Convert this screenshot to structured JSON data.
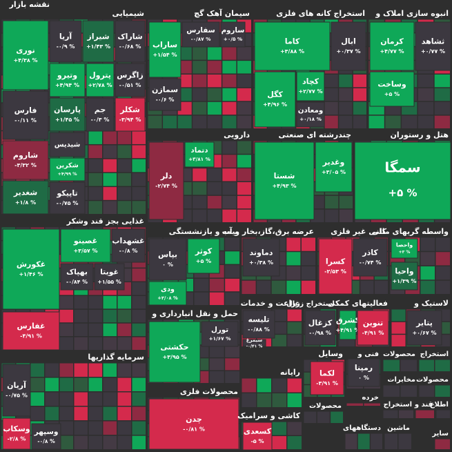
{
  "chart_data": {
    "type": "treemap",
    "title": "نقشه بازار",
    "sectors": [
      {
        "name": "شیمیایی",
        "stocks": [
          {
            "name": "نوری",
            "value": 4.38,
            "value_label": "+۴/۳۸ %",
            "color": "#0fa858"
          },
          {
            "name": "آریا",
            "value": -0.9,
            "value_label": "-۰/۹ %",
            "color": "#3c3840"
          },
          {
            "name": "شیراز",
            "value": 1.43,
            "value_label": "+۱/۴۳ %",
            "color": "#1f6b45"
          },
          {
            "name": "شاراک",
            "value": -0.68,
            "value_label": "-۰/۶۸ %",
            "color": "#3c3840"
          },
          {
            "name": "وتیرو",
            "value": 4.94,
            "value_label": "+۴/۹۴ %",
            "color": "#0fa858"
          },
          {
            "name": "پترول",
            "value": 2.78,
            "value_label": "+۲/۷۸ %",
            "color": "#0fa858"
          },
          {
            "name": "زاگرس",
            "value": -0.51,
            "value_label": "-۰/۵۱ %",
            "color": "#3c3840"
          },
          {
            "name": "فارس",
            "value": -0.11,
            "value_label": "-۰/۱۱ %",
            "color": "#3c3840"
          },
          {
            "name": "پارسان",
            "value": 1.45,
            "value_label": "+۱/۴۵ %",
            "color": "#1f6b45"
          },
          {
            "name": "جم",
            "value": -0.3,
            "value_label": "-۰/۳ %",
            "color": "#3c3840"
          },
          {
            "name": "شکلر",
            "value": -3.94,
            "value_label": "-۳/۹۴ %",
            "color": "#d42a4c"
          },
          {
            "name": "شیدیس",
            "color": "#3c3840"
          },
          {
            "name": "شاروم",
            "value": -3.32,
            "value_label": "-۳/۳۲ %",
            "color": "#8e2a42"
          },
          {
            "name": "شکرین",
            "value": 4.99,
            "value_label": "+۴/۹۹ %",
            "color": "#0fa858"
          },
          {
            "name": "شغدیر",
            "value": 1.8,
            "value_label": "+۱/۸ %",
            "color": "#1f6b45"
          },
          {
            "name": "تاپیکو",
            "value": -0.75,
            "value_label": "-۰/۷۵ %",
            "color": "#3c3840"
          }
        ]
      },
      {
        "name": "سیمان آهک گچ",
        "stocks": [
          {
            "name": "ساراب",
            "value": 1.54,
            "value_label": "+۱/۵۴ %",
            "color": "#0fa858"
          },
          {
            "name": "سفارس",
            "value": -0.87,
            "value_label": "-۰/۸۷ %",
            "color": "#3c3840"
          },
          {
            "name": "ساروم",
            "value": 0.5,
            "value_label": "+۰/۵ %",
            "color": "#3c3840"
          },
          {
            "name": "سمازن",
            "value": -0.6,
            "value_label": "-۰/۶ %",
            "color": "#3c3840"
          }
        ]
      },
      {
        "name": "استخراج کانه های فلزی",
        "stocks": [
          {
            "name": "کاما",
            "value": 3.88,
            "value_label": "+۳/۸۸ %",
            "color": "#0fa858"
          },
          {
            "name": "ابال",
            "value": 0.37,
            "value_label": "+۰/۳۷ %",
            "color": "#3c3840"
          },
          {
            "name": "کگل",
            "value": 4.96,
            "value_label": "+۴/۹۶ %",
            "color": "#0fa858"
          },
          {
            "name": "کچاد",
            "value": 2.77,
            "value_label": "+۲/۷۷ %",
            "color": "#0fa858"
          },
          {
            "name": "ومعادن",
            "value": 0.18,
            "value_label": "+۰/۱۸ %",
            "color": "#3c3840"
          }
        ]
      },
      {
        "name": "انبوه سازی املاک و",
        "stocks": [
          {
            "name": "کرمان",
            "value": 4.77,
            "value_label": "+۴/۷۷ %",
            "color": "#0fa858"
          },
          {
            "name": "ثشاهد",
            "value": 0.77,
            "value_label": "+۰/۷۷ %",
            "color": "#3c3840"
          },
          {
            "name": "وساخت",
            "value": 5,
            "value_label": "+۵ %",
            "color": "#0fa858"
          }
        ]
      },
      {
        "name": "دارویی",
        "stocks": [
          {
            "name": "دتماد",
            "value": 3.81,
            "value_label": "+۳/۸۱ %",
            "color": "#0fa858"
          },
          {
            "name": "دلر",
            "value": -2.74,
            "value_label": "-۲/۷۴ %",
            "color": "#8e2a42"
          }
        ]
      },
      {
        "name": "چندرشته ای صنعتی",
        "stocks": [
          {
            "name": "شستا",
            "value": 4.93,
            "value_label": "+۴/۹۳ %",
            "color": "#0fa858"
          },
          {
            "name": "وغدیر",
            "value": 3.05,
            "value_label": "+۳/۰۵ %",
            "color": "#0fa858"
          }
        ]
      },
      {
        "name": "هتل و رستوران",
        "stocks": [
          {
            "name": "سمگا",
            "value": 5,
            "value_label": "+۵ %",
            "color": "#0fa858"
          }
        ]
      },
      {
        "name": "غذایی بجز قند وشکر",
        "stocks": [
          {
            "name": "غکورش",
            "value": 1.46,
            "value_label": "+۱/۴۶ %",
            "color": "#0fa858"
          },
          {
            "name": "غصینو",
            "value": 3.57,
            "value_label": "+۳/۵۷ %",
            "color": "#0fa858"
          },
          {
            "name": "غشهداب",
            "value": -0.8,
            "value_label": "-۰/۸ %",
            "color": "#3c3840"
          },
          {
            "name": "بهپاک",
            "value": -0.84,
            "value_label": "-۰/۸۴ %",
            "color": "#3c3840"
          },
          {
            "name": "غویتا",
            "value": 1.55,
            "value_label": "+۱/۵۵ %",
            "color": "#3c3840"
          },
          {
            "name": "غفارس",
            "value": -4.91,
            "value_label": "-۴/۹۱ %",
            "color": "#d42a4c"
          }
        ]
      },
      {
        "name": "بیمه و بازنشستگی",
        "stocks": [
          {
            "name": "بپاس",
            "value": 0,
            "value_label": "۰ %",
            "color": "#3c3840"
          },
          {
            "name": "کوثر",
            "value": 5,
            "value_label": "+۵ %",
            "color": "#0fa858"
          },
          {
            "name": "ودی",
            "value": 3.08,
            "value_label": "+۳/۰۸ %",
            "color": "#0fa858"
          }
        ]
      },
      {
        "name": "عرضه برق،گاز،بخار و آب",
        "stocks": [
          {
            "name": "دماوند",
            "value": 0.38,
            "value_label": "+۰/۳۸ %",
            "color": "#3c3840"
          }
        ]
      },
      {
        "name": "کانی غیر فلزی",
        "stocks": [
          {
            "name": "کسرا",
            "value": -2.53,
            "value_label": "-۲/۵۳ %",
            "color": "#d42a4c"
          },
          {
            "name": "کاذر",
            "value": -0.74,
            "value_label": "-۰/۷۴ %",
            "color": "#3c3840"
          }
        ]
      },
      {
        "name": "واسطه گریهای مالی",
        "stocks": [
          {
            "name": "واحصا",
            "value": 3,
            "value_label": "+۳ %",
            "color": "#0fa858"
          },
          {
            "name": "واحیا",
            "value": 1.39,
            "value_label": "+۱/۳۹ %",
            "color": "#1f6b45"
          }
        ]
      },
      {
        "name": "حمل و نقل انبارداری و",
        "stocks": [
          {
            "name": "حکشتی",
            "value": 3.95,
            "value_label": "+۳/۹۵ %",
            "color": "#0fa858"
          },
          {
            "name": "تورل",
            "value": 1.67,
            "value_label": "+۱/۶۷ %",
            "color": "#3c3840"
          }
        ]
      },
      {
        "name": "زراعت و خدمات",
        "stocks": [
          {
            "name": "تلیسه",
            "value": -0.88,
            "value_label": "-۰/۸۸ %",
            "color": "#3c3840"
          },
          {
            "name": "سیمرغ",
            "value": -0.41,
            "value_label": "-۰/۴۱ %",
            "color": "#3c3840"
          }
        ]
      },
      {
        "name": "استخراج زغال",
        "stocks": [
          {
            "name": "کزغال",
            "value": -0.98,
            "value_label": "-۰/۹۸ %",
            "color": "#3c3840"
          }
        ]
      },
      {
        "name": "فعالیتهای کمکی",
        "stocks": [
          {
            "name": "کشرق",
            "value": 4.91,
            "value_label": "+۴/۹۱ %",
            "color": "#0fa858"
          },
          {
            "name": "تنوین",
            "value": -4.91,
            "value_label": "-۴/۹۱ %",
            "color": "#d42a4c"
          }
        ]
      },
      {
        "name": "لاستیک و",
        "stocks": [
          {
            "name": "پتایر",
            "value": 0.67,
            "value_label": "+۰/۶۷ %",
            "color": "#3c3840"
          }
        ]
      },
      {
        "name": "سرمایه گذاریها",
        "stocks": [
          {
            "name": "آریان",
            "value": -0.75,
            "value_label": "-۰/۷۵ %",
            "color": "#3c3840"
          },
          {
            "name": "وسکاب",
            "value": -2.8,
            "value_label": "-۲/۸ %",
            "color": "#d42a4c"
          },
          {
            "name": "وسپهر",
            "value": -0.8,
            "value_label": "-۰/۸ %",
            "color": "#3c3840"
          }
        ]
      },
      {
        "name": "محصولات فلزی",
        "stocks": [
          {
            "name": "چدن",
            "value": -0.81,
            "value_label": "-۰/۸۱ %",
            "color": "#d42a4c"
          }
        ]
      },
      {
        "name": "رایانه",
        "stocks": []
      },
      {
        "name": "وسایل",
        "stocks": [
          {
            "name": "لکما",
            "value": -3.91,
            "value_label": "-۳/۹۱ %",
            "color": "#d42a4c"
          }
        ]
      },
      {
        "name": "فنی و",
        "stocks": [
          {
            "name": "رمپنا",
            "value": 0,
            "value_label": "۰ %",
            "color": "#3c3840"
          }
        ]
      },
      {
        "name": "محصولات",
        "stocks": []
      },
      {
        "name": "استخراج",
        "stocks": []
      },
      {
        "name": "مخابرات",
        "stocks": []
      },
      {
        "name": "محصولات",
        "stocks": []
      },
      {
        "name": "خرده",
        "stocks": []
      },
      {
        "name": "محصولات",
        "stocks": []
      },
      {
        "name": "استخراج",
        "stocks": []
      },
      {
        "name": "قند و",
        "stocks": []
      },
      {
        "name": "اطلاع",
        "stocks": []
      },
      {
        "name": "کاشی و سرامیک",
        "stocks": [
          {
            "name": "کسعدی",
            "value": -5,
            "value_label": "-۵ %",
            "color": "#d42a4c"
          }
        ]
      },
      {
        "name": "دستگاههای",
        "stocks": []
      },
      {
        "name": "ماشین",
        "stocks": []
      },
      {
        "name": "سایر",
        "stocks": []
      }
    ]
  }
}
